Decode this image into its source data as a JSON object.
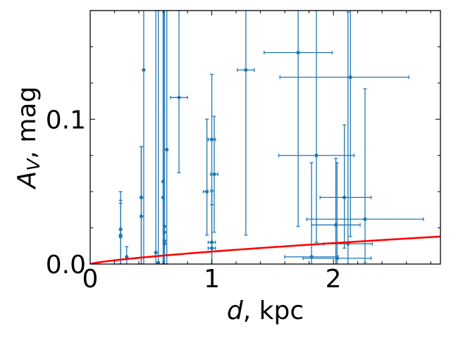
{
  "chart_data": {
    "type": "scatter",
    "xlabel": "d, kpc",
    "ylabel": "A_V, mag",
    "xlim": [
      0,
      2.88
    ],
    "ylim": [
      0,
      0.175
    ],
    "xticks": [
      0,
      1,
      2
    ],
    "xtick_labels": [
      "0",
      "1",
      "2"
    ],
    "yticks": [
      0.0,
      0.1
    ],
    "ytick_labels": [
      "0.0",
      "0.1"
    ],
    "grid": false,
    "colors": {
      "points": "#1f77b4",
      "curve": "#ff0000"
    },
    "series": [
      {
        "type": "errorbar",
        "points": [
          {
            "x": 0.25,
            "y": 0.024,
            "xerr": [
              0.0,
              0.0
            ],
            "yerr": [
              0.024,
              0.026
            ]
          },
          {
            "x": 0.25,
            "y": 0.02,
            "xerr": [
              0.0,
              0.0
            ],
            "yerr": [
              0.02,
              0.024
            ]
          },
          {
            "x": 0.25,
            "y": 0.019,
            "xerr": [
              0.0,
              0.0
            ],
            "yerr": [
              0.019,
              0.023
            ]
          },
          {
            "x": 0.3,
            "y": 0.005,
            "xerr": [
              0.0,
              0.0
            ],
            "yerr": [
              0.005,
              0.007
            ]
          },
          {
            "x": 0.42,
            "y": 0.046,
            "xerr": [
              0.0,
              0.0
            ],
            "yerr": [
              0.046,
              0.035
            ]
          },
          {
            "x": 0.42,
            "y": 0.033,
            "xerr": [
              0.0,
              0.0
            ],
            "yerr": [
              0.033,
              0.048
            ]
          },
          {
            "x": 0.44,
            "y": 0.134,
            "xerr": [
              0.0,
              0.0
            ],
            "yerr": [
              0.134,
              0.05
            ]
          },
          {
            "x": 0.54,
            "y": 0.008,
            "xerr": [
              0.0,
              0.0
            ],
            "yerr": [
              0.008,
              0.167
            ]
          },
          {
            "x": 0.56,
            "y": 0.001,
            "xerr": [
              0.0,
              0.0
            ],
            "yerr": [
              0.001,
              0.174
            ]
          },
          {
            "x": 0.6,
            "y": 0.057,
            "xerr": [
              0.0,
              0.0
            ],
            "yerr": [
              0.057,
              0.12
            ]
          },
          {
            "x": 0.6,
            "y": 0.046,
            "xerr": [
              0.0,
              0.0
            ],
            "yerr": [
              0.046,
              0.13
            ]
          },
          {
            "x": 0.61,
            "y": 0.026,
            "xerr": [
              0.0,
              0.0
            ],
            "yerr": [
              0.026,
              0.15
            ]
          },
          {
            "x": 0.61,
            "y": 0.022,
            "xerr": [
              0.0,
              0.0
            ],
            "yerr": [
              0.022,
              0.154
            ]
          },
          {
            "x": 0.61,
            "y": 0.016,
            "xerr": [
              0.0,
              0.0
            ],
            "yerr": [
              0.016,
              0.16
            ]
          },
          {
            "x": 0.61,
            "y": 0.014,
            "xerr": [
              0.0,
              0.0
            ],
            "yerr": [
              0.014,
              0.162
            ]
          },
          {
            "x": 0.63,
            "y": 0.079,
            "xerr": [
              0.0,
              0.0
            ],
            "yerr": [
              0.079,
              0.1
            ]
          },
          {
            "x": 0.73,
            "y": 0.115,
            "xerr": [
              0.07,
              0.07
            ],
            "yerr": [
              0.052,
              0.06
            ]
          },
          {
            "x": 0.96,
            "y": 0.05,
            "xerr": [
              0.03,
              0.0
            ],
            "yerr": [
              0.03,
              0.05
            ]
          },
          {
            "x": 1.0,
            "y": 0.086,
            "xerr": [
              0.03,
              0.03
            ],
            "yerr": [
              0.045,
              0.045
            ]
          },
          {
            "x": 1.02,
            "y": 0.062,
            "xerr": [
              0.03,
              0.03
            ],
            "yerr": [
              0.04,
              0.04
            ]
          },
          {
            "x": 1.0,
            "y": 0.015,
            "xerr": [
              0.03,
              0.03
            ],
            "yerr": [
              0.015,
              0.035
            ]
          },
          {
            "x": 1.0,
            "y": 0.011,
            "xerr": [
              0.03,
              0.03
            ],
            "yerr": [
              0.011,
              0.04
            ]
          },
          {
            "x": 1.28,
            "y": 0.134,
            "xerr": [
              0.07,
              0.07
            ],
            "yerr": [
              0.114,
              0.05
            ]
          },
          {
            "x": 1.71,
            "y": 0.146,
            "xerr": [
              0.28,
              0.28
            ],
            "yerr": [
              0.12,
              0.05
            ]
          },
          {
            "x": 1.86,
            "y": 0.075,
            "xerr": [
              0.31,
              0.31
            ],
            "yerr": [
              0.06,
              0.1
            ]
          },
          {
            "x": 2.14,
            "y": 0.129,
            "xerr": [
              0.58,
              0.48
            ],
            "yerr": [
              0.11,
              0.05
            ]
          },
          {
            "x": 2.09,
            "y": 0.046,
            "xerr": [
              0.2,
              0.22
            ],
            "yerr": [
              0.035,
              0.05
            ]
          },
          {
            "x": 2.26,
            "y": 0.031,
            "xerr": [
              0.48,
              0.48
            ],
            "yerr": [
              0.03,
              0.09
            ]
          },
          {
            "x": 2.02,
            "y": 0.027,
            "xerr": [
              0.2,
              0.2
            ],
            "yerr": [
              0.027,
              0.046
            ]
          },
          {
            "x": 2.12,
            "y": 0.014,
            "xerr": [
              0.2,
              0.2
            ],
            "yerr": [
              0.014,
              0.16
            ]
          },
          {
            "x": 1.82,
            "y": 0.005,
            "xerr": [
              0.22,
              0.22
            ],
            "yerr": [
              0.005,
              0.065
            ]
          },
          {
            "x": 2.03,
            "y": 0.004,
            "xerr": [
              0.28,
              0.28
            ],
            "yerr": [
              0.004,
              0.066
            ]
          }
        ]
      }
    ],
    "curve": {
      "x": [
        0,
        2.88
      ],
      "y_at_max_x": 0.019,
      "shape": "increasing, concave"
    }
  }
}
